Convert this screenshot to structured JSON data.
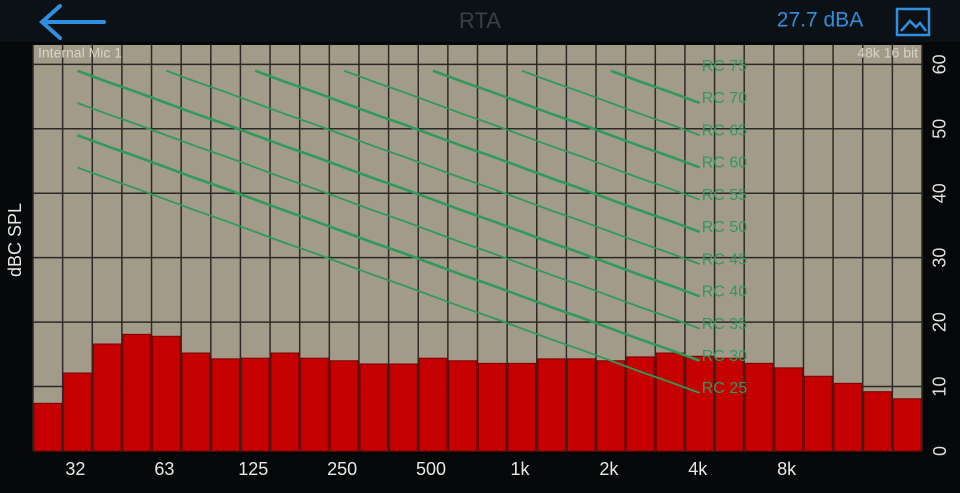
{
  "header": {
    "title": "RTA",
    "level": "27.7 dBA",
    "input": "Internal Mic 1",
    "format": "48k 16 bit"
  },
  "chart_data": {
    "type": "bar",
    "y_label": "dBC SPL",
    "categories": [
      null,
      "32",
      null,
      null,
      "63",
      null,
      null,
      "125",
      null,
      null,
      "250",
      null,
      null,
      "500",
      null,
      null,
      "1k",
      null,
      null,
      "2k",
      null,
      null,
      "4k",
      null,
      null,
      "8k",
      null,
      null,
      null,
      null
    ],
    "values": [
      7.4,
      12.1,
      16.6,
      18.1,
      17.8,
      15.2,
      14.3,
      14.4,
      15.2,
      14.4,
      14,
      13.5,
      13.5,
      14.4,
      14,
      13.6,
      13.6,
      14.3,
      14.3,
      14,
      14.6,
      15.2,
      14.7,
      14.4,
      13.6,
      12.9,
      11.6,
      10.5,
      9.2,
      8.1
    ],
    "color": "#c40000",
    "ylim": [
      0,
      63
    ],
    "yticks": [
      0,
      10,
      20,
      30,
      40,
      50,
      60
    ],
    "grid": true,
    "rc_curves": [
      {
        "name": "RC 25",
        "color": "#2f9a5c",
        "values": [
          null,
          44,
          42.3,
          40.7,
          39,
          37.3,
          35.7,
          34,
          32.3,
          30.7,
          29,
          27.3,
          25.7,
          24,
          22.3,
          20.7,
          19,
          17.3,
          15.7,
          14,
          12.3,
          10.7,
          9,
          null,
          null,
          null,
          null,
          null,
          null,
          null
        ]
      },
      {
        "name": "RC 30",
        "color": "#2f9a5c",
        "values": [
          null,
          49,
          47.3,
          45.7,
          44,
          42.3,
          40.7,
          39,
          37.3,
          35.7,
          34,
          32.3,
          30.7,
          29,
          27.3,
          25.7,
          24,
          22.3,
          20.7,
          19,
          17.3,
          15.7,
          14,
          null,
          null,
          null,
          null,
          null,
          null,
          null
        ]
      },
      {
        "name": "RC 35",
        "color": "#2f9a5c",
        "values": [
          null,
          54,
          52.3,
          50.7,
          49,
          47.3,
          45.7,
          44,
          42.3,
          40.7,
          39,
          37.3,
          35.7,
          34,
          32.3,
          30.7,
          29,
          27.3,
          25.7,
          24,
          22.3,
          20.7,
          19,
          null,
          null,
          null,
          null,
          null,
          null,
          null
        ]
      },
      {
        "name": "RC 40",
        "color": "#2f9a5c",
        "values": [
          null,
          59,
          57.3,
          55.7,
          54,
          52.3,
          50.7,
          49,
          47.3,
          45.7,
          44,
          42.3,
          40.7,
          39,
          37.3,
          35.7,
          34,
          32.3,
          30.7,
          29,
          27.3,
          25.7,
          24,
          null,
          null,
          null,
          null,
          null,
          null,
          null
        ]
      },
      {
        "name": "RC 45",
        "color": "#2f9a5c",
        "values": [
          null,
          null,
          null,
          null,
          59,
          57.3,
          55.7,
          54,
          52.3,
          50.7,
          49,
          47.3,
          45.7,
          44,
          42.3,
          40.7,
          39,
          37.3,
          35.7,
          34,
          32.3,
          30.7,
          29,
          null,
          null,
          null,
          null,
          null,
          null,
          null
        ]
      },
      {
        "name": "RC 50",
        "color": "#2f9a5c",
        "values": [
          null,
          null,
          null,
          null,
          null,
          null,
          null,
          59,
          57.3,
          55.7,
          54,
          52.3,
          50.7,
          49,
          47.3,
          45.7,
          44,
          42.3,
          40.7,
          39,
          37.3,
          35.7,
          34,
          null,
          null,
          null,
          null,
          null,
          null,
          null
        ]
      },
      {
        "name": "RC 55",
        "color": "#2f9a5c",
        "values": [
          null,
          null,
          null,
          null,
          null,
          null,
          null,
          null,
          null,
          null,
          59,
          57.3,
          55.7,
          54,
          52.3,
          50.7,
          49,
          47.3,
          45.7,
          44,
          42.3,
          40.7,
          39,
          null,
          null,
          null,
          null,
          null,
          null,
          null
        ]
      },
      {
        "name": "RC 60",
        "color": "#2f9a5c",
        "values": [
          null,
          null,
          null,
          null,
          null,
          null,
          null,
          null,
          null,
          null,
          null,
          null,
          null,
          59,
          57.3,
          55.7,
          54,
          52.3,
          50.7,
          49,
          47.3,
          45.7,
          44,
          null,
          null,
          null,
          null,
          null,
          null,
          null
        ]
      },
      {
        "name": "RC 65",
        "color": "#2f9a5c",
        "values": [
          null,
          null,
          null,
          null,
          null,
          null,
          null,
          null,
          null,
          null,
          null,
          null,
          null,
          null,
          null,
          null,
          59,
          57.3,
          55.7,
          54,
          52.3,
          50.7,
          49,
          null,
          null,
          null,
          null,
          null,
          null,
          null
        ]
      },
      {
        "name": "RC 70",
        "color": "#2f9a5c",
        "values": [
          null,
          null,
          null,
          null,
          null,
          null,
          null,
          null,
          null,
          null,
          null,
          null,
          null,
          null,
          null,
          null,
          null,
          null,
          null,
          59,
          57.3,
          55.7,
          54,
          null,
          null,
          null,
          null,
          null,
          null,
          null
        ]
      },
      {
        "name": "RC 75",
        "color": "#2f9a5c",
        "values": [
          null,
          null,
          null,
          null,
          null,
          null,
          null,
          null,
          null,
          null,
          null,
          null,
          null,
          null,
          null,
          null,
          null,
          null,
          null,
          null,
          null,
          null,
          59,
          null,
          null,
          null,
          null,
          null,
          null,
          null
        ]
      }
    ]
  }
}
